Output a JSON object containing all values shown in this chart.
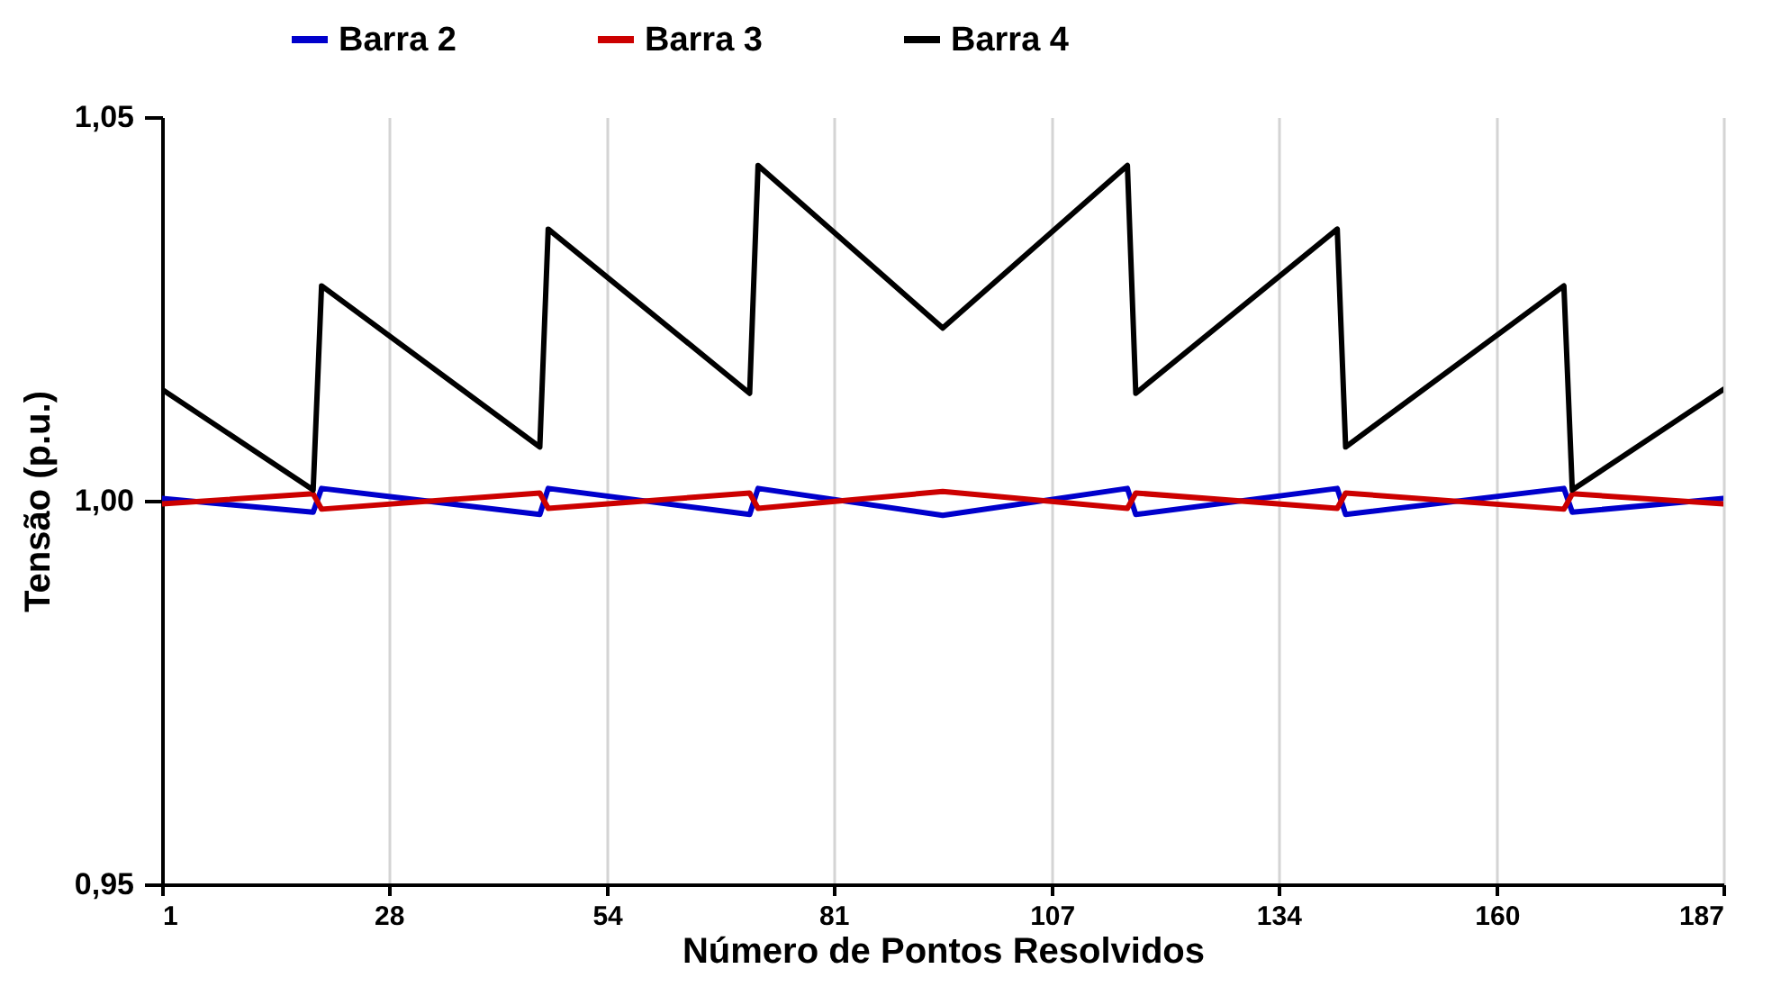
{
  "chart_data": {
    "type": "line",
    "xlabel": "Número de Pontos Resolvidos",
    "ylabel": "Tensão (p.u.)",
    "xlim": [
      1,
      187
    ],
    "xticks": [
      1,
      28,
      54,
      81,
      107,
      134,
      160,
      187
    ],
    "ylim": [
      0.95,
      1.05
    ],
    "yticks": [
      {
        "value": 0.95,
        "label": "0,95"
      },
      {
        "value": 1.0,
        "label": "1,00"
      },
      {
        "value": 1.05,
        "label": "1,05"
      }
    ],
    "grid": "x",
    "legend": "top",
    "marker": "none",
    "line_style": "solid",
    "series": [
      {
        "name": "Barra 2",
        "color": "#0000cc",
        "x": [
          1,
          19,
          20,
          46,
          47,
          71,
          72,
          94,
          116,
          117,
          141,
          142,
          168,
          169,
          187
        ],
        "values": [
          1.0003,
          0.9985,
          1.0016,
          0.9982,
          1.0016,
          0.9982,
          1.0016,
          0.9981,
          1.0016,
          0.9982,
          1.0016,
          0.9982,
          1.0016,
          0.9985,
          1.0003
        ]
      },
      {
        "name": "Barra 3",
        "color": "#cc0000",
        "x": [
          1,
          19,
          20,
          46,
          47,
          71,
          72,
          94,
          116,
          117,
          141,
          142,
          168,
          169,
          187
        ],
        "values": [
          0.9996,
          1.0009,
          0.9989,
          1.001,
          0.999,
          1.001,
          0.999,
          1.0012,
          0.999,
          1.001,
          0.999,
          1.001,
          0.9989,
          1.0009,
          0.9996
        ]
      },
      {
        "name": "Barra 4",
        "color": "#000000",
        "x": [
          1,
          19,
          20,
          46,
          47,
          71,
          72,
          94,
          116,
          117,
          141,
          142,
          168,
          169,
          187
        ],
        "values": [
          1.0145,
          1.0014,
          1.028,
          1.007,
          1.0354,
          1.014,
          1.0437,
          1.0225,
          1.0437,
          1.014,
          1.0354,
          1.007,
          1.028,
          1.0014,
          1.0145
        ]
      }
    ]
  }
}
